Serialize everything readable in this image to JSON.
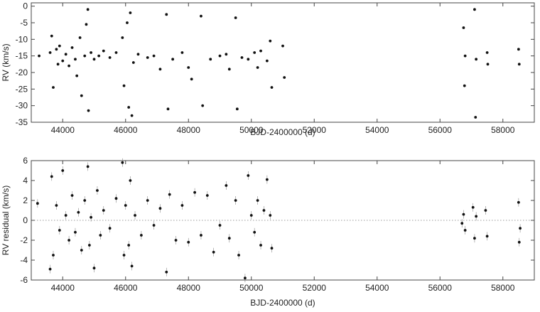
{
  "chart_data": [
    {
      "type": "scatter",
      "xlabel": "BJD-2400000 (d)",
      "ylabel": "RV (km/s)",
      "xlim": [
        43000,
        59000
      ],
      "ylim": [
        -35,
        1
      ],
      "xticks": [
        44000,
        46000,
        48000,
        50000,
        52000,
        54000,
        56000,
        58000
      ],
      "yticks": [
        0,
        -5,
        -10,
        -15,
        -20,
        -25,
        -30,
        -35
      ],
      "xtick_labels": [
        "44000",
        "46000",
        "48000",
        "50000",
        "52000",
        "54000",
        "56000",
        "58000"
      ],
      "ytick_labels": [
        "0",
        "-5",
        "-10",
        "-15",
        "-20",
        "-25",
        "-30",
        "-35"
      ],
      "grid": false,
      "series": [
        {
          "points": [
            [
              43250,
              -15.0
            ],
            [
              43600,
              -14.0
            ],
            [
              43650,
              -9.0
            ],
            [
              43700,
              -24.5
            ],
            [
              43800,
              -13.0
            ],
            [
              43850,
              -17.5
            ],
            [
              43900,
              -12.0
            ],
            [
              44000,
              -16.5
            ],
            [
              44100,
              -14.5
            ],
            [
              44200,
              -18.0
            ],
            [
              44300,
              -12.5
            ],
            [
              44400,
              -16.0
            ],
            [
              44450,
              -21.0
            ],
            [
              44550,
              -9.5
            ],
            [
              44600,
              -27.0
            ],
            [
              44700,
              -15.0
            ],
            [
              44750,
              -5.5
            ],
            [
              44800,
              -1.0
            ],
            [
              44820,
              -31.5
            ],
            [
              44900,
              -14.0
            ],
            [
              45000,
              -16.0
            ],
            [
              45150,
              -15.0
            ],
            [
              45300,
              -13.5
            ],
            [
              45500,
              -15.5
            ],
            [
              45700,
              -14.0
            ],
            [
              45900,
              -9.5
            ],
            [
              45950,
              -24.0
            ],
            [
              46050,
              -5.0
            ],
            [
              46100,
              -30.5
            ],
            [
              46150,
              -2.0
            ],
            [
              46200,
              -33.0
            ],
            [
              46250,
              -17.0
            ],
            [
              46400,
              -14.5
            ],
            [
              46700,
              -15.5
            ],
            [
              46900,
              -15.0
            ],
            [
              47100,
              -19.0
            ],
            [
              47300,
              -2.5
            ],
            [
              47350,
              -31.0
            ],
            [
              47500,
              -16.0
            ],
            [
              47800,
              -14.0
            ],
            [
              48000,
              -18.5
            ],
            [
              48100,
              -22.0
            ],
            [
              48400,
              -3.0
            ],
            [
              48450,
              -30.0
            ],
            [
              48700,
              -16.0
            ],
            [
              49000,
              -15.0
            ],
            [
              49200,
              -14.5
            ],
            [
              49300,
              -19.0
            ],
            [
              49500,
              -3.5
            ],
            [
              49550,
              -31.0
            ],
            [
              49700,
              -15.5
            ],
            [
              49900,
              -16.0
            ],
            [
              50100,
              -14.0
            ],
            [
              50200,
              -18.5
            ],
            [
              50300,
              -13.5
            ],
            [
              50500,
              -16.5
            ],
            [
              50600,
              -10.5
            ],
            [
              50650,
              -24.5
            ],
            [
              51000,
              -12.0
            ],
            [
              51050,
              -21.5
            ],
            [
              56750,
              -6.5
            ],
            [
              56780,
              -24.0
            ],
            [
              56800,
              -15.0
            ],
            [
              57100,
              -1.0
            ],
            [
              57130,
              -33.5
            ],
            [
              57150,
              -16.0
            ],
            [
              57500,
              -14.0
            ],
            [
              57520,
              -17.5
            ],
            [
              58500,
              -13.0
            ],
            [
              58520,
              -17.5
            ]
          ]
        }
      ]
    },
    {
      "type": "scatter",
      "xlabel": "BJD-2400000 (d)",
      "ylabel": "RV residual (km/s)",
      "xlim": [
        43000,
        59000
      ],
      "ylim": [
        -6,
        6
      ],
      "xticks": [
        44000,
        46000,
        48000,
        50000,
        52000,
        54000,
        56000,
        58000
      ],
      "yticks": [
        6,
        4,
        2,
        0,
        -2,
        -4,
        -6
      ],
      "xtick_labels": [
        "44000",
        "46000",
        "48000",
        "50000",
        "52000",
        "54000",
        "56000",
        "58000"
      ],
      "ytick_labels": [
        "6",
        "4",
        "2",
        "0",
        "-2",
        "-4",
        "-6"
      ],
      "zero_line": true,
      "grid": false,
      "series": [
        {
          "points": [
            [
              43200,
              1.7
            ],
            [
              43600,
              -4.9
            ],
            [
              43650,
              4.4
            ],
            [
              43700,
              -3.5
            ],
            [
              43800,
              1.5
            ],
            [
              43900,
              -1.0
            ],
            [
              44000,
              5.0
            ],
            [
              44100,
              0.5
            ],
            [
              44200,
              -2.0
            ],
            [
              44300,
              2.5
            ],
            [
              44400,
              -1.2
            ],
            [
              44500,
              0.8
            ],
            [
              44600,
              -3.0
            ],
            [
              44700,
              2.0
            ],
            [
              44800,
              5.4
            ],
            [
              44850,
              -2.5
            ],
            [
              44900,
              0.3
            ],
            [
              45000,
              -4.8
            ],
            [
              45100,
              3.0
            ],
            [
              45200,
              -1.5
            ],
            [
              45300,
              1.0
            ],
            [
              45500,
              -0.8
            ],
            [
              45700,
              2.2
            ],
            [
              45900,
              5.8
            ],
            [
              45950,
              -3.5
            ],
            [
              46000,
              1.5
            ],
            [
              46100,
              -2.5
            ],
            [
              46150,
              4.0
            ],
            [
              46200,
              -4.6
            ],
            [
              46300,
              0.5
            ],
            [
              46500,
              -1.5
            ],
            [
              46700,
              2.0
            ],
            [
              46900,
              -0.5
            ],
            [
              47100,
              1.2
            ],
            [
              47300,
              -5.2
            ],
            [
              47400,
              2.6
            ],
            [
              47600,
              -2.0
            ],
            [
              47800,
              1.5
            ],
            [
              48000,
              -2.2
            ],
            [
              48200,
              2.8
            ],
            [
              48400,
              -1.5
            ],
            [
              48600,
              2.5
            ],
            [
              48800,
              -3.2
            ],
            [
              49000,
              -0.5
            ],
            [
              49200,
              3.5
            ],
            [
              49300,
              -1.8
            ],
            [
              49500,
              2.0
            ],
            [
              49600,
              -3.5
            ],
            [
              49800,
              -5.8
            ],
            [
              49900,
              4.5
            ],
            [
              50000,
              0.5
            ],
            [
              50100,
              -1.2
            ],
            [
              50200,
              2.0
            ],
            [
              50300,
              -2.5
            ],
            [
              50400,
              1.0
            ],
            [
              50500,
              4.1
            ],
            [
              50600,
              0.5
            ],
            [
              50650,
              -2.8
            ],
            [
              56700,
              -0.3
            ],
            [
              56750,
              0.6
            ],
            [
              56800,
              -1.0
            ],
            [
              57050,
              1.3
            ],
            [
              57100,
              -1.8
            ],
            [
              57150,
              0.4
            ],
            [
              57450,
              1.0
            ],
            [
              57500,
              -1.6
            ],
            [
              58500,
              1.8
            ],
            [
              58520,
              -2.2
            ],
            [
              58550,
              -0.8
            ]
          ]
        }
      ]
    }
  ]
}
